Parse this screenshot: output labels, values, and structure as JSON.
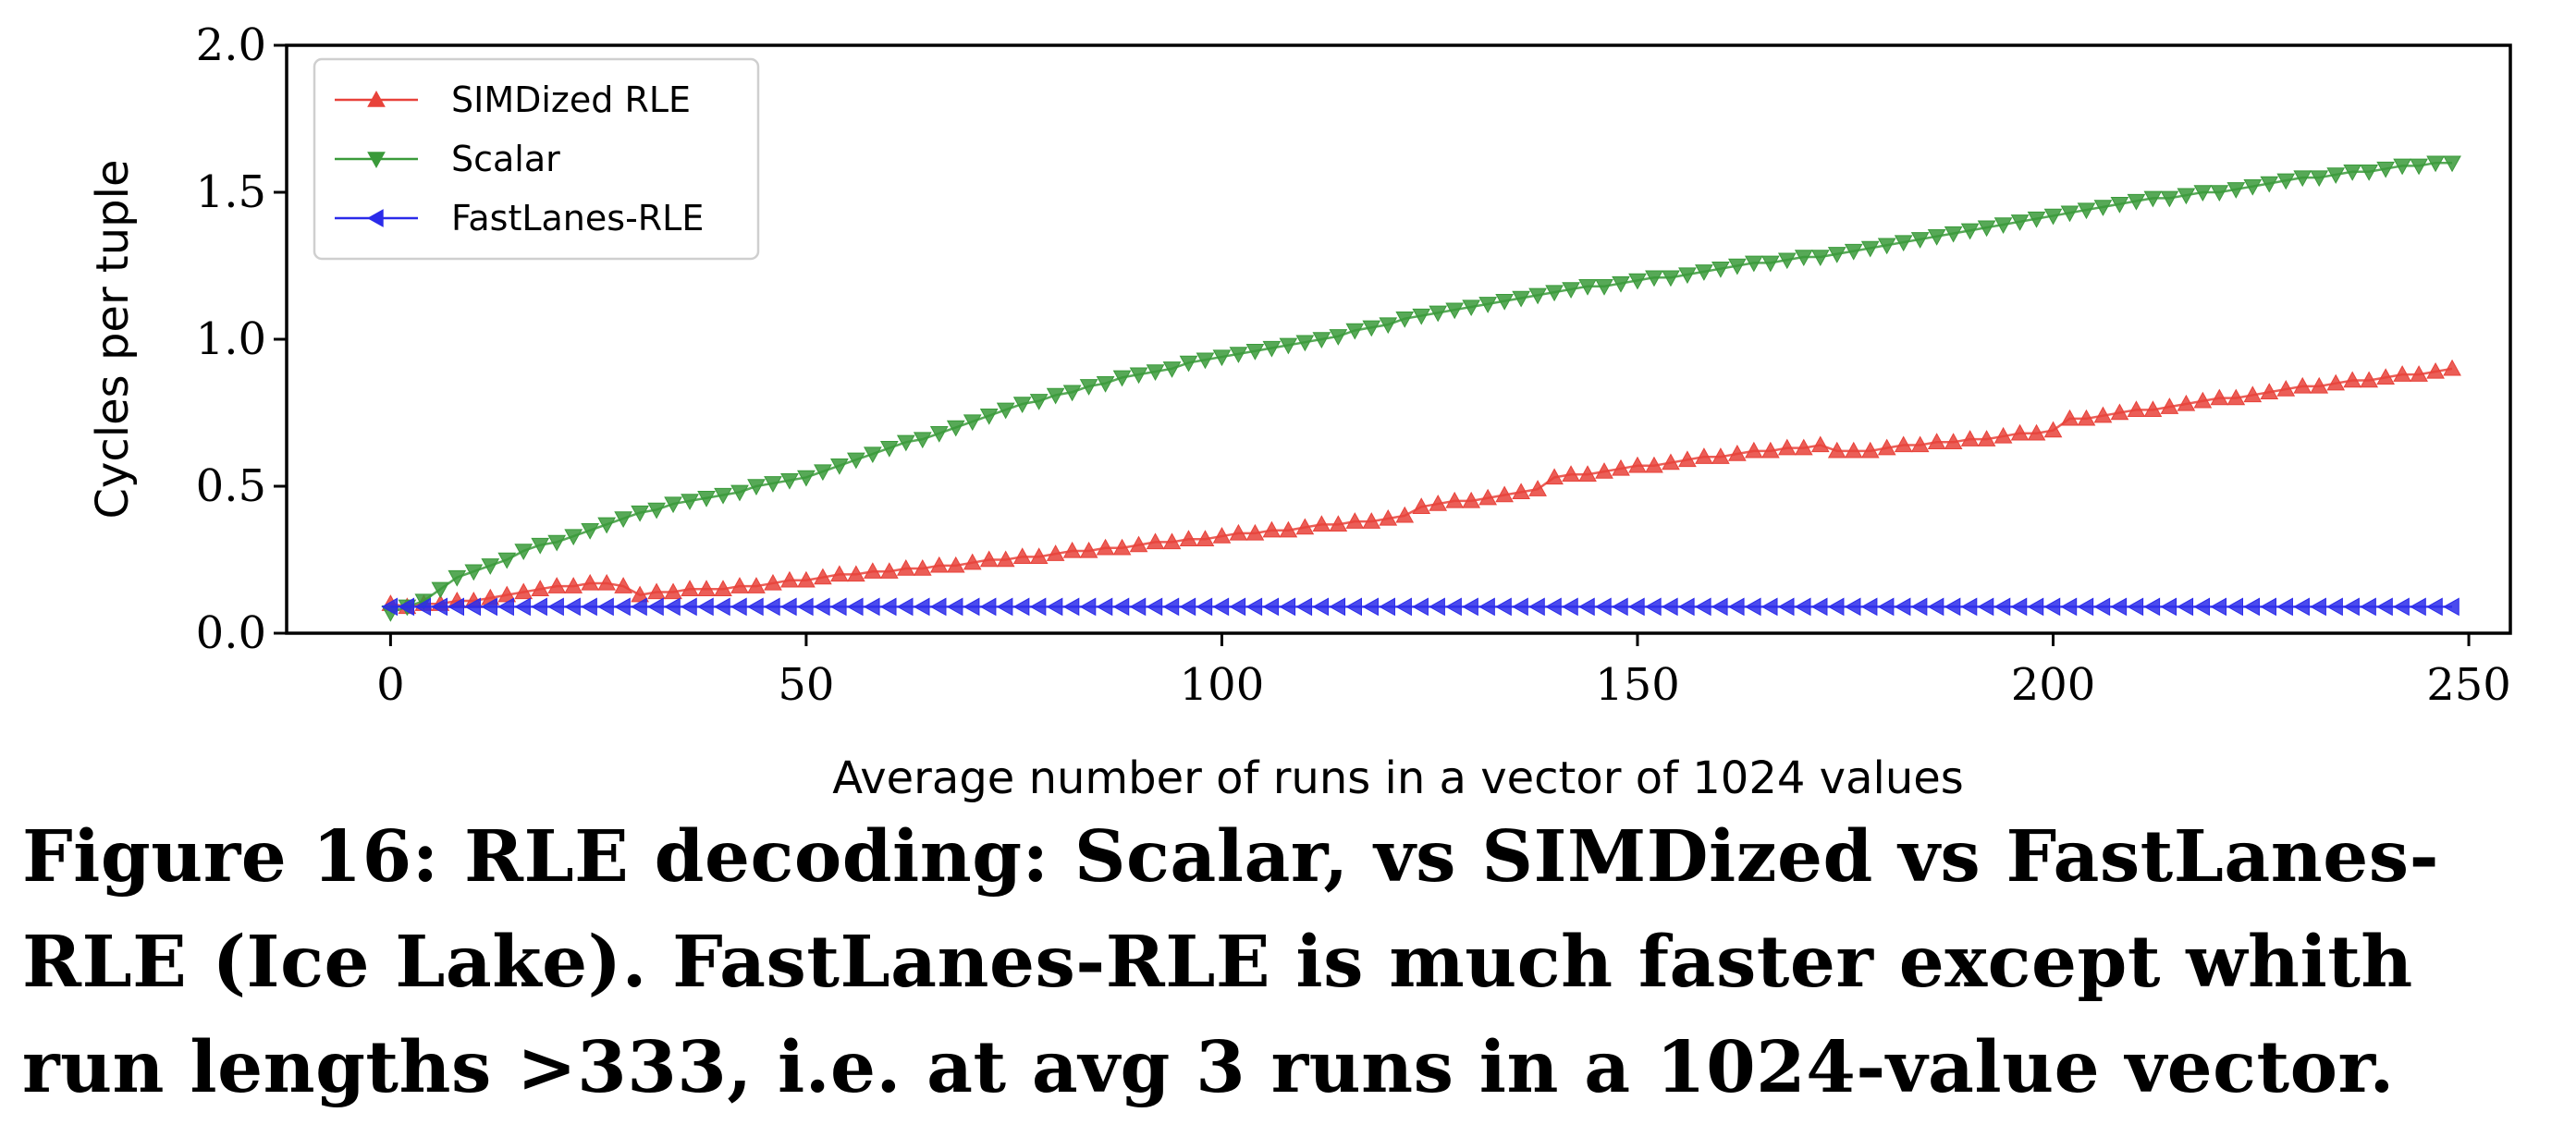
{
  "caption": "Figure 16: RLE decoding: Scalar, vs SIMDized vs FastLanes-RLE (Ice Lake). FastLanes-RLE is much faster except whith run lengths >333, i.e. at avg 3 runs in a 1024-value vector.",
  "chart_data": {
    "type": "line",
    "title": "",
    "xlabel": "Average number of runs in a vector of 1024 values",
    "ylabel": "Cycles per tuple",
    "xlim": [
      -12.5,
      255
    ],
    "ylim": [
      0.0,
      2.0
    ],
    "xticks": [
      "0",
      "50",
      "100",
      "150",
      "200",
      "250"
    ],
    "yticks": [
      "0.0",
      "0.5",
      "1.0",
      "1.5",
      "2.0"
    ],
    "grid": false,
    "legend_position": "upper left",
    "x_start": 0,
    "x_step": 2,
    "series": [
      {
        "name": "SIMDized RLE",
        "color": "#e8423a",
        "marker": "triangle-up",
        "values": [
          0.1,
          0.09,
          0.1,
          0.1,
          0.11,
          0.11,
          0.12,
          0.13,
          0.14,
          0.15,
          0.16,
          0.16,
          0.17,
          0.17,
          0.16,
          0.13,
          0.14,
          0.14,
          0.15,
          0.15,
          0.15,
          0.16,
          0.16,
          0.17,
          0.18,
          0.18,
          0.19,
          0.2,
          0.2,
          0.21,
          0.21,
          0.22,
          0.22,
          0.23,
          0.23,
          0.24,
          0.25,
          0.25,
          0.26,
          0.26,
          0.27,
          0.28,
          0.28,
          0.29,
          0.29,
          0.3,
          0.31,
          0.31,
          0.32,
          0.32,
          0.33,
          0.34,
          0.34,
          0.35,
          0.35,
          0.36,
          0.37,
          0.37,
          0.38,
          0.38,
          0.39,
          0.4,
          0.43,
          0.44,
          0.45,
          0.45,
          0.46,
          0.47,
          0.48,
          0.49,
          0.53,
          0.54,
          0.54,
          0.55,
          0.56,
          0.57,
          0.57,
          0.58,
          0.59,
          0.6,
          0.6,
          0.61,
          0.62,
          0.62,
          0.63,
          0.63,
          0.64,
          0.62,
          0.62,
          0.62,
          0.63,
          0.64,
          0.64,
          0.65,
          0.65,
          0.66,
          0.66,
          0.67,
          0.68,
          0.68,
          0.69,
          0.73,
          0.73,
          0.74,
          0.75,
          0.76,
          0.76,
          0.77,
          0.78,
          0.79,
          0.8,
          0.8,
          0.81,
          0.82,
          0.83,
          0.84,
          0.84,
          0.85,
          0.86,
          0.86,
          0.87,
          0.88,
          0.88,
          0.89,
          0.9
        ]
      },
      {
        "name": "Scalar",
        "color": "#3a9a3a",
        "marker": "triangle-down",
        "values": [
          0.07,
          0.09,
          0.11,
          0.15,
          0.19,
          0.21,
          0.23,
          0.25,
          0.28,
          0.3,
          0.31,
          0.33,
          0.35,
          0.37,
          0.39,
          0.41,
          0.42,
          0.44,
          0.45,
          0.46,
          0.47,
          0.48,
          0.5,
          0.51,
          0.52,
          0.53,
          0.55,
          0.57,
          0.59,
          0.61,
          0.63,
          0.65,
          0.66,
          0.68,
          0.7,
          0.72,
          0.74,
          0.76,
          0.78,
          0.79,
          0.81,
          0.82,
          0.84,
          0.85,
          0.87,
          0.88,
          0.89,
          0.9,
          0.92,
          0.93,
          0.94,
          0.95,
          0.96,
          0.97,
          0.98,
          0.99,
          1.0,
          1.01,
          1.03,
          1.04,
          1.05,
          1.07,
          1.08,
          1.09,
          1.1,
          1.11,
          1.12,
          1.13,
          1.14,
          1.15,
          1.16,
          1.17,
          1.18,
          1.18,
          1.19,
          1.2,
          1.21,
          1.21,
          1.22,
          1.23,
          1.24,
          1.25,
          1.26,
          1.26,
          1.27,
          1.28,
          1.28,
          1.29,
          1.3,
          1.31,
          1.32,
          1.33,
          1.34,
          1.35,
          1.36,
          1.37,
          1.38,
          1.39,
          1.4,
          1.41,
          1.42,
          1.43,
          1.44,
          1.45,
          1.46,
          1.47,
          1.48,
          1.48,
          1.49,
          1.5,
          1.5,
          1.51,
          1.52,
          1.53,
          1.54,
          1.55,
          1.55,
          1.56,
          1.57,
          1.57,
          1.58,
          1.59,
          1.59,
          1.6,
          1.6
        ]
      },
      {
        "name": "FastLanes-RLE",
        "color": "#2b2bea",
        "marker": "triangle-left",
        "values": [
          0.09,
          0.09,
          0.09,
          0.09,
          0.09,
          0.09,
          0.09,
          0.09,
          0.09,
          0.09,
          0.09,
          0.09,
          0.09,
          0.09,
          0.09,
          0.09,
          0.09,
          0.09,
          0.09,
          0.09,
          0.09,
          0.09,
          0.09,
          0.09,
          0.09,
          0.09,
          0.09,
          0.09,
          0.09,
          0.09,
          0.09,
          0.09,
          0.09,
          0.09,
          0.09,
          0.09,
          0.09,
          0.09,
          0.09,
          0.09,
          0.09,
          0.09,
          0.09,
          0.09,
          0.09,
          0.09,
          0.09,
          0.09,
          0.09,
          0.09,
          0.09,
          0.09,
          0.09,
          0.09,
          0.09,
          0.09,
          0.09,
          0.09,
          0.09,
          0.09,
          0.09,
          0.09,
          0.09,
          0.09,
          0.09,
          0.09,
          0.09,
          0.09,
          0.09,
          0.09,
          0.09,
          0.09,
          0.09,
          0.09,
          0.09,
          0.09,
          0.09,
          0.09,
          0.09,
          0.09,
          0.09,
          0.09,
          0.09,
          0.09,
          0.09,
          0.09,
          0.09,
          0.09,
          0.09,
          0.09,
          0.09,
          0.09,
          0.09,
          0.09,
          0.09,
          0.09,
          0.09,
          0.09,
          0.09,
          0.09,
          0.09,
          0.09,
          0.09,
          0.09,
          0.09,
          0.09,
          0.09,
          0.09,
          0.09,
          0.09,
          0.09,
          0.09,
          0.09,
          0.09,
          0.09,
          0.09,
          0.09,
          0.09,
          0.09,
          0.09,
          0.09,
          0.09,
          0.09,
          0.09,
          0.09
        ]
      }
    ]
  }
}
